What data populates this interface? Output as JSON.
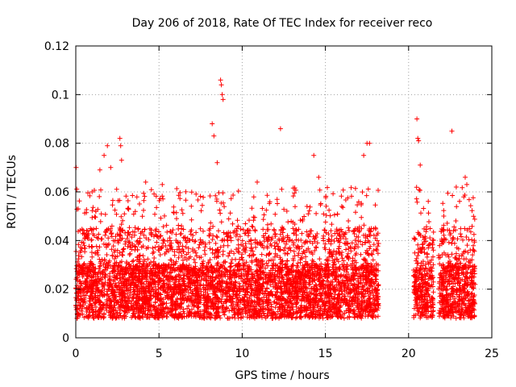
{
  "chart_data": {
    "type": "scatter",
    "title": "Day 206 of 2018, Rate Of TEC Index for receiver reco",
    "xlabel": "GPS time / hours",
    "ylabel": "ROTI / TECUs",
    "xlim": [
      0,
      25
    ],
    "ylim": [
      0,
      0.12
    ],
    "xticks": [
      "0",
      "5",
      "10",
      "15",
      "20",
      "25"
    ],
    "yticks": [
      "0",
      "0.02",
      "0.04",
      "0.06",
      "0.08",
      "0.1",
      "0.12"
    ],
    "grid": true,
    "marker": "+",
    "color": "#ff0000",
    "series": [
      {
        "coverage_hours": [
          [
            0,
            18.2
          ],
          [
            20.3,
            21.5
          ],
          [
            21.8,
            24
          ]
        ],
        "typical_range": [
          0.008,
          0.03
        ],
        "outliers": [
          [
            0.02,
            0.07
          ],
          [
            0.15,
            0.053
          ],
          [
            1.45,
            0.069
          ],
          [
            1.7,
            0.075
          ],
          [
            1.9,
            0.079
          ],
          [
            2.1,
            0.07
          ],
          [
            2.65,
            0.082
          ],
          [
            2.7,
            0.079
          ],
          [
            2.75,
            0.073
          ],
          [
            4.2,
            0.064
          ],
          [
            5.2,
            0.063
          ],
          [
            8.2,
            0.088
          ],
          [
            8.3,
            0.083
          ],
          [
            8.5,
            0.072
          ],
          [
            8.7,
            0.106
          ],
          [
            8.75,
            0.104
          ],
          [
            8.8,
            0.1
          ],
          [
            8.85,
            0.098
          ],
          [
            10.9,
            0.064
          ],
          [
            12.3,
            0.086
          ],
          [
            14.3,
            0.075
          ],
          [
            14.6,
            0.066
          ],
          [
            17.3,
            0.075
          ],
          [
            17.5,
            0.08
          ],
          [
            17.65,
            0.08
          ],
          [
            20.5,
            0.09
          ],
          [
            20.55,
            0.082
          ],
          [
            20.6,
            0.081
          ],
          [
            20.7,
            0.071
          ],
          [
            22.6,
            0.085
          ],
          [
            23.4,
            0.066
          ],
          [
            23.5,
            0.063
          ],
          [
            23.9,
            0.05
          ]
        ]
      }
    ]
  }
}
